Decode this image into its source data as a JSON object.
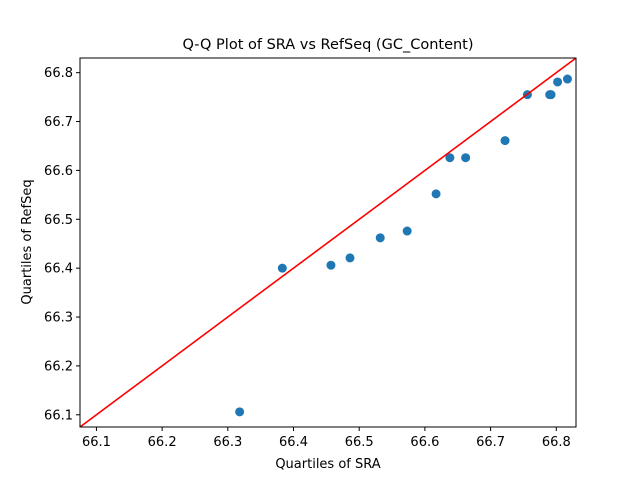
{
  "chart_data": {
    "type": "scatter",
    "title": "Q-Q Plot of SRA vs RefSeq (GC_Content)",
    "xlabel": "Quartiles of SRA",
    "ylabel": "Quartiles of RefSeq",
    "xlim": [
      66.075,
      66.83
    ],
    "ylim": [
      66.075,
      66.83
    ],
    "xticks": [
      "66.1",
      "66.2",
      "66.3",
      "66.4",
      "66.5",
      "66.6",
      "66.7",
      "66.8"
    ],
    "yticks": [
      "66.1",
      "66.2",
      "66.3",
      "66.4",
      "66.5",
      "66.6",
      "66.7",
      "66.8"
    ],
    "grid": false,
    "points": [
      {
        "x": 66.318,
        "y": 66.106
      },
      {
        "x": 66.383,
        "y": 66.4
      },
      {
        "x": 66.457,
        "y": 66.406
      },
      {
        "x": 66.486,
        "y": 66.421
      },
      {
        "x": 66.532,
        "y": 66.462
      },
      {
        "x": 66.573,
        "y": 66.476
      },
      {
        "x": 66.617,
        "y": 66.552
      },
      {
        "x": 66.638,
        "y": 66.626
      },
      {
        "x": 66.662,
        "y": 66.626
      },
      {
        "x": 66.722,
        "y": 66.661
      },
      {
        "x": 66.756,
        "y": 66.755
      },
      {
        "x": 66.79,
        "y": 66.755
      },
      {
        "x": 66.792,
        "y": 66.755
      },
      {
        "x": 66.802,
        "y": 66.781
      },
      {
        "x": 66.817,
        "y": 66.787
      }
    ],
    "reference_line": {
      "type": "y=x",
      "color": "#ff0000"
    },
    "marker_color": "#1f77b4",
    "axes_color": "#000000"
  }
}
